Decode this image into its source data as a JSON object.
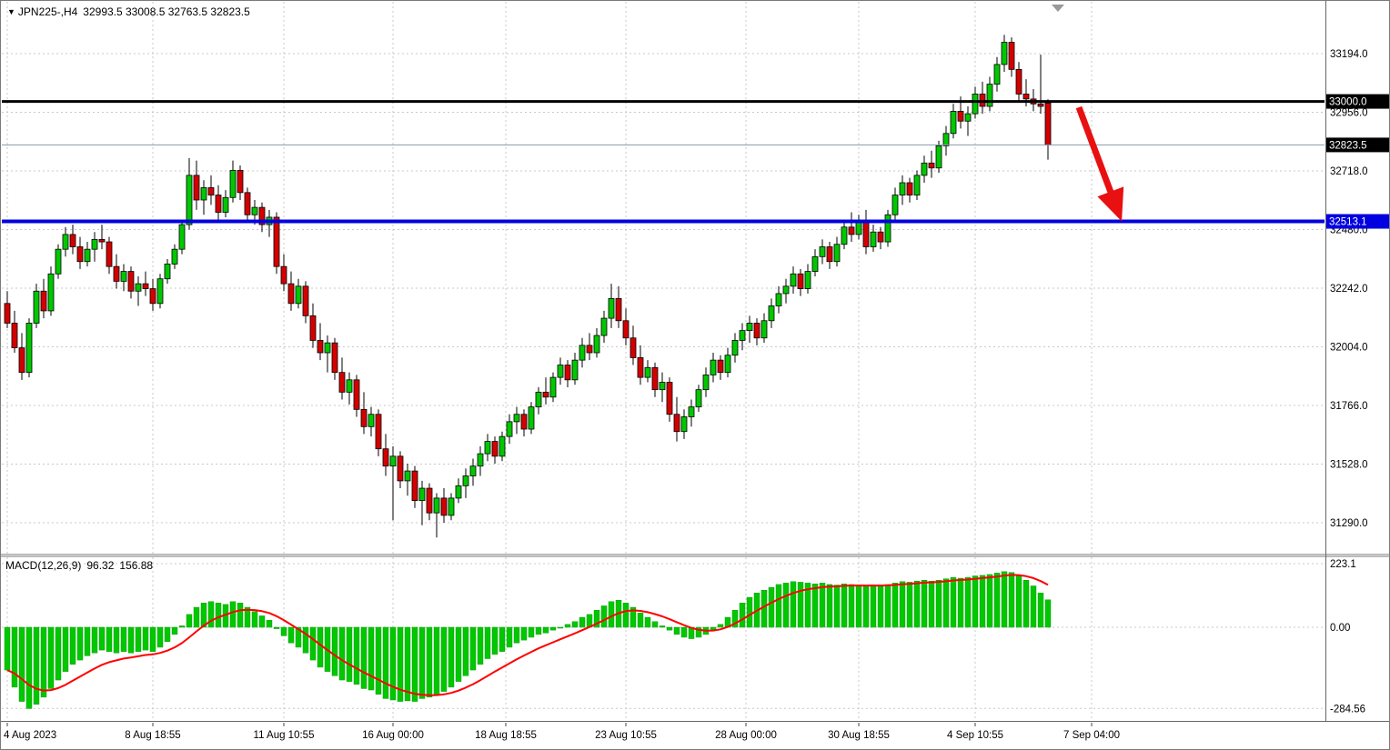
{
  "header": {
    "dropdown_icon": "▼",
    "symbol_timeframe": "JPN225-,H4",
    "ohlc": "32993.5 33008.5 32763.5 32823.5"
  },
  "colors": {
    "background": "#FFFFFF",
    "grid": "#C8C8C8",
    "up_candle": "#00C800",
    "down_candle": "#D40000",
    "candle_outline": "#000000",
    "macd_histogram": "#00C800",
    "macd_signal": "#FF0000",
    "arrow": "#E81010",
    "axis_text": "#000000"
  },
  "chart_data": [
    {
      "type": "candlestick",
      "symbol": "JPN225-",
      "timeframe": "H4",
      "current_bar_ohlc": [
        32993.5,
        33008.5,
        32763.5,
        32823.5
      ],
      "y_axis": {
        "tick_labels": [
          "33194.0",
          "32956.0",
          "32718.0",
          "32480.0",
          "32242.0",
          "32004.0",
          "31766.0",
          "31528.0",
          "31290.0"
        ],
        "tick_values": [
          33194.0,
          32956.0,
          32718.0,
          32480.0,
          32242.0,
          32004.0,
          31766.0,
          31528.0,
          31290.0
        ]
      },
      "x_axis": {
        "labels": [
          {
            "text": "4 Aug 2023",
            "bar": 0
          },
          {
            "text": "8 Aug 18:55",
            "bar": 20
          },
          {
            "text": "11 Aug 10:55",
            "bar": 38
          },
          {
            "text": "16 Aug 00:00",
            "bar": 53
          },
          {
            "text": "18 Aug 18:55",
            "bar": 68.5
          },
          {
            "text": "23 Aug 10:55",
            "bar": 85
          },
          {
            "text": "28 Aug 00:00",
            "bar": 101.5
          },
          {
            "text": "30 Aug 18:55",
            "bar": 117
          },
          {
            "text": "4 Sep 10:55",
            "bar": 133
          },
          {
            "text": "7 Sep 04:00",
            "bar": 149
          }
        ]
      },
      "levels": [
        {
          "name": "resistance",
          "price": 33000.0,
          "label": "33000.0",
          "line_color": "#000000",
          "badge_color": "#000000",
          "thickness": 3
        },
        {
          "name": "current-price",
          "price": 32823.5,
          "label": "32823.5",
          "line_color": "#8899AA",
          "badge_color": "#000000",
          "thickness": 1
        },
        {
          "name": "support",
          "price": 32513.1,
          "label": "32513.1",
          "line_color": "#0000E0",
          "badge_color": "#0000E0",
          "thickness": 4
        }
      ],
      "annotations": [
        {
          "type": "arrow",
          "color": "#E81010",
          "from": {
            "bar": 147.25,
            "price": 32976
          },
          "to": {
            "bar": 151.75,
            "price": 32622
          }
        }
      ],
      "candles": [
        [
          32180,
          32230,
          32080,
          32100
        ],
        [
          32100,
          32150,
          31980,
          32000
        ],
        [
          32000,
          32060,
          31870,
          31900
        ],
        [
          31900,
          32120,
          31880,
          32100
        ],
        [
          32100,
          32260,
          32080,
          32230
        ],
        [
          32230,
          32280,
          32120,
          32150
        ],
        [
          32150,
          32330,
          32130,
          32300
        ],
        [
          32300,
          32420,
          32280,
          32400
        ],
        [
          32400,
          32490,
          32370,
          32460
        ],
        [
          32460,
          32500,
          32380,
          32410
        ],
        [
          32410,
          32450,
          32320,
          32350
        ],
        [
          32350,
          32430,
          32330,
          32400
        ],
        [
          32400,
          32470,
          32350,
          32440
        ],
        [
          32440,
          32500,
          32400,
          32430
        ],
        [
          32430,
          32450,
          32300,
          32330
        ],
        [
          32330,
          32380,
          32240,
          32270
        ],
        [
          32270,
          32340,
          32230,
          32310
        ],
        [
          32310,
          32330,
          32200,
          32230
        ],
        [
          32230,
          32290,
          32170,
          32260
        ],
        [
          32260,
          32310,
          32210,
          32240
        ],
        [
          32240,
          32280,
          32150,
          32180
        ],
        [
          32180,
          32300,
          32160,
          32280
        ],
        [
          32280,
          32360,
          32260,
          32340
        ],
        [
          32340,
          32420,
          32320,
          32400
        ],
        [
          32400,
          32520,
          32380,
          32500
        ],
        [
          32500,
          32770,
          32480,
          32700
        ],
        [
          32700,
          32760,
          32560,
          32600
        ],
        [
          32600,
          32680,
          32540,
          32650
        ],
        [
          32650,
          32700,
          32580,
          32620
        ],
        [
          32620,
          32660,
          32520,
          32550
        ],
        [
          32550,
          32640,
          32530,
          32610
        ],
        [
          32610,
          32760,
          32590,
          32720
        ],
        [
          32720,
          32740,
          32600,
          32630
        ],
        [
          32630,
          32650,
          32520,
          32540
        ],
        [
          32540,
          32600,
          32500,
          32570
        ],
        [
          32570,
          32590,
          32470,
          32500
        ],
        [
          32500,
          32560,
          32450,
          32530
        ],
        [
          32530,
          32550,
          32300,
          32330
        ],
        [
          32330,
          32380,
          32230,
          32260
        ],
        [
          32260,
          32310,
          32150,
          32180
        ],
        [
          32180,
          32280,
          32160,
          32250
        ],
        [
          32250,
          32270,
          32100,
          32130
        ],
        [
          32130,
          32180,
          32000,
          32030
        ],
        [
          32030,
          32100,
          31950,
          31980
        ],
        [
          31980,
          32050,
          31900,
          32020
        ],
        [
          32020,
          32040,
          31870,
          31900
        ],
        [
          31900,
          31960,
          31790,
          31820
        ],
        [
          31820,
          31900,
          31770,
          31870
        ],
        [
          31870,
          31890,
          31720,
          31750
        ],
        [
          31750,
          31820,
          31650,
          31680
        ],
        [
          31680,
          31760,
          31640,
          31730
        ],
        [
          31730,
          31750,
          31560,
          31590
        ],
        [
          31590,
          31650,
          31480,
          31520
        ],
        [
          31520,
          31600,
          31300,
          31560
        ],
        [
          31560,
          31580,
          31430,
          31460
        ],
        [
          31460,
          31530,
          31400,
          31500
        ],
        [
          31500,
          31520,
          31350,
          31380
        ],
        [
          31380,
          31460,
          31280,
          31430
        ],
        [
          31430,
          31450,
          31300,
          31330
        ],
        [
          31330,
          31410,
          31230,
          31390
        ],
        [
          31390,
          31430,
          31290,
          31320
        ],
        [
          31320,
          31410,
          31300,
          31390
        ],
        [
          31390,
          31470,
          31370,
          31440
        ],
        [
          31440,
          31510,
          31390,
          31480
        ],
        [
          31480,
          31550,
          31440,
          31520
        ],
        [
          31520,
          31600,
          31480,
          31570
        ],
        [
          31570,
          31650,
          31540,
          31620
        ],
        [
          31620,
          31640,
          31530,
          31560
        ],
        [
          31560,
          31660,
          31540,
          31640
        ],
        [
          31640,
          31730,
          31610,
          31700
        ],
        [
          31700,
          31760,
          31650,
          31730
        ],
        [
          31730,
          31750,
          31640,
          31670
        ],
        [
          31670,
          31780,
          31650,
          31760
        ],
        [
          31760,
          31840,
          31730,
          31820
        ],
        [
          31820,
          31880,
          31770,
          31800
        ],
        [
          31800,
          31900,
          31780,
          31880
        ],
        [
          31880,
          31960,
          31850,
          31930
        ],
        [
          31930,
          31950,
          31840,
          31870
        ],
        [
          31870,
          31980,
          31850,
          31950
        ],
        [
          31950,
          32040,
          31920,
          32010
        ],
        [
          32010,
          32060,
          31950,
          31980
        ],
        [
          31980,
          32080,
          31960,
          32050
        ],
        [
          32050,
          32150,
          32020,
          32120
        ],
        [
          32120,
          32260,
          32080,
          32200
        ],
        [
          32200,
          32250,
          32080,
          32110
        ],
        [
          32110,
          32160,
          32010,
          32040
        ],
        [
          32040,
          32090,
          31930,
          31960
        ],
        [
          31960,
          32010,
          31850,
          31880
        ],
        [
          31880,
          31950,
          31860,
          31920
        ],
        [
          31920,
          31940,
          31800,
          31830
        ],
        [
          31830,
          31900,
          31780,
          31860
        ],
        [
          31860,
          31880,
          31700,
          31730
        ],
        [
          31730,
          31800,
          31620,
          31660
        ],
        [
          31660,
          31750,
          31630,
          31720
        ],
        [
          31720,
          31790,
          31680,
          31760
        ],
        [
          31760,
          31850,
          31740,
          31830
        ],
        [
          31830,
          31920,
          31800,
          31890
        ],
        [
          31890,
          31980,
          31860,
          31950
        ],
        [
          31950,
          31970,
          31870,
          31900
        ],
        [
          31900,
          32000,
          31880,
          31970
        ],
        [
          31970,
          32060,
          31940,
          32030
        ],
        [
          32030,
          32100,
          31990,
          32070
        ],
        [
          32070,
          32130,
          32020,
          32100
        ],
        [
          32100,
          32120,
          32010,
          32040
        ],
        [
          32040,
          32140,
          32020,
          32110
        ],
        [
          32110,
          32200,
          32080,
          32170
        ],
        [
          32170,
          32250,
          32140,
          32220
        ],
        [
          32220,
          32280,
          32180,
          32250
        ],
        [
          32250,
          32330,
          32220,
          32300
        ],
        [
          32300,
          32320,
          32210,
          32240
        ],
        [
          32240,
          32340,
          32220,
          32310
        ],
        [
          32310,
          32400,
          32290,
          32370
        ],
        [
          32370,
          32440,
          32340,
          32410
        ],
        [
          32410,
          32430,
          32320,
          32350
        ],
        [
          32350,
          32450,
          32330,
          32420
        ],
        [
          32420,
          32520,
          32400,
          32490
        ],
        [
          32490,
          32550,
          32430,
          32460
        ],
        [
          32460,
          32540,
          32440,
          32510
        ],
        [
          32510,
          32560,
          32380,
          32410
        ],
        [
          32410,
          32500,
          32390,
          32470
        ],
        [
          32470,
          32490,
          32400,
          32430
        ],
        [
          32430,
          32560,
          32410,
          32540
        ],
        [
          32540,
          32650,
          32520,
          32620
        ],
        [
          32620,
          32700,
          32580,
          32670
        ],
        [
          32670,
          32690,
          32590,
          32620
        ],
        [
          32620,
          32720,
          32600,
          32700
        ],
        [
          32700,
          32780,
          32670,
          32750
        ],
        [
          32750,
          32800,
          32690,
          32730
        ],
        [
          32730,
          32840,
          32710,
          32820
        ],
        [
          32820,
          32900,
          32780,
          32870
        ],
        [
          32870,
          32990,
          32850,
          32960
        ],
        [
          32960,
          33020,
          32890,
          32920
        ],
        [
          32920,
          32980,
          32860,
          32950
        ],
        [
          32950,
          33060,
          32930,
          33030
        ],
        [
          33030,
          33080,
          32950,
          32980
        ],
        [
          32980,
          33100,
          32960,
          33070
        ],
        [
          33070,
          33180,
          33040,
          33150
        ],
        [
          33150,
          33270,
          33120,
          33240
        ],
        [
          33240,
          33260,
          33100,
          33130
        ],
        [
          33130,
          33160,
          33000,
          33030
        ],
        [
          33030,
          33090,
          32980,
          33010
        ],
        [
          33010,
          33050,
          32960,
          32990
        ],
        [
          32990,
          33190,
          32950,
          32980
        ],
        [
          32993.5,
          33008.5,
          32763.5,
          32823.5
        ]
      ]
    },
    {
      "type": "macd",
      "label": "MACD(12,26,9)",
      "macd_value_text": "96.32",
      "signal_value_text": "156.88",
      "macd_value": 96.32,
      "signal_value": 156.88,
      "y_axis": {
        "tick_labels": [
          "223.1",
          "0.00",
          "-284.56"
        ],
        "tick_values": [
          223.1,
          0,
          -284.56
        ]
      },
      "histogram": [
        -150,
        -210,
        -260,
        -285,
        -270,
        -245,
        -215,
        -185,
        -155,
        -130,
        -115,
        -100,
        -90,
        -80,
        -85,
        -90,
        -85,
        -90,
        -85,
        -80,
        -85,
        -70,
        -50,
        -25,
        5,
        45,
        70,
        85,
        90,
        85,
        80,
        90,
        85,
        70,
        55,
        40,
        25,
        -5,
        -30,
        -55,
        -70,
        -90,
        -115,
        -140,
        -155,
        -170,
        -185,
        -190,
        -200,
        -215,
        -220,
        -235,
        -250,
        -255,
        -260,
        -258,
        -260,
        -250,
        -245,
        -235,
        -225,
        -210,
        -190,
        -170,
        -150,
        -130,
        -110,
        -95,
        -85,
        -70,
        -55,
        -45,
        -35,
        -25,
        -20,
        -10,
        0,
        10,
        20,
        35,
        45,
        60,
        75,
        90,
        95,
        85,
        70,
        50,
        35,
        20,
        5,
        -10,
        -25,
        -35,
        -40,
        -35,
        -25,
        -10,
        10,
        35,
        60,
        85,
        105,
        120,
        130,
        140,
        150,
        155,
        160,
        158,
        155,
        152,
        155,
        150,
        148,
        152,
        150,
        148,
        145,
        148,
        145,
        150,
        155,
        160,
        158,
        162,
        165,
        162,
        165,
        170,
        175,
        172,
        175,
        180,
        182,
        185,
        190,
        195,
        192,
        180,
        165,
        145,
        120,
        96.32
      ]
    }
  ]
}
